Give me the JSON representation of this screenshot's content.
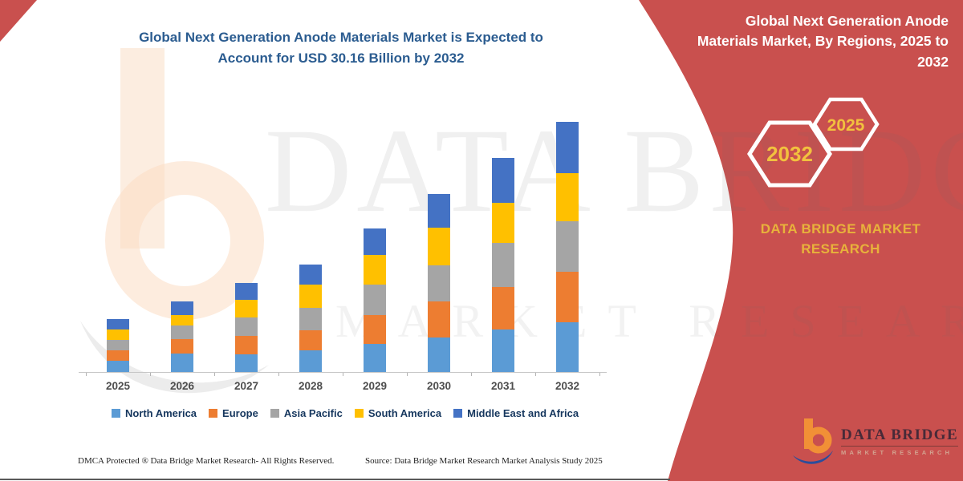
{
  "colors": {
    "banner_red": "#c9504e",
    "title_blue": "#2b5c90",
    "legend_text": "#16375e",
    "hex_yellow": "#f2c13e",
    "brand_yellow": "#e8b23b"
  },
  "chart": {
    "title_line1": "Global Next Generation Anode Materials Market is Expected to",
    "title_line2": "Account for USD 30.16 Billion by 2032"
  },
  "chart_data": {
    "type": "bar",
    "stacked": true,
    "unit": "USD Billion",
    "title": "Global Next Generation Anode Materials Market, By Regions, 2025 to 2032",
    "xlabel": "",
    "ylabel": "",
    "grid": false,
    "y_axis_visible": false,
    "legend_position": "bottom",
    "ylim": [
      0,
      32
    ],
    "categories": [
      "2025",
      "2026",
      "2027",
      "2028",
      "2029",
      "2030",
      "2031",
      "2032"
    ],
    "series": [
      {
        "name": "North America",
        "color": "#5B9BD5",
        "values": [
          1.35,
          2.22,
          2.13,
          2.61,
          3.38,
          4.16,
          5.12,
          5.99
        ]
      },
      {
        "name": "Europe",
        "color": "#ED7D31",
        "values": [
          1.26,
          1.74,
          2.22,
          2.42,
          3.48,
          4.35,
          5.12,
          6.09
        ]
      },
      {
        "name": "Asia Pacific",
        "color": "#A5A5A5",
        "values": [
          1.26,
          1.64,
          2.22,
          2.71,
          3.67,
          4.35,
          5.32,
          6.09
        ]
      },
      {
        "name": "South America",
        "color": "#FFC000",
        "values": [
          1.26,
          1.26,
          2.13,
          2.8,
          3.58,
          4.54,
          4.83,
          5.8
        ]
      },
      {
        "name": "Middle East and Africa",
        "color": "#4472C4",
        "values": [
          1.26,
          1.64,
          2.03,
          2.42,
          3.19,
          4.06,
          5.41,
          6.19
        ]
      }
    ],
    "totals": [
      6.39,
      8.5,
      10.73,
      12.96,
      17.3,
      21.46,
      25.8,
      30.16
    ]
  },
  "banner": {
    "title_line1": "Global Next Generation Anode",
    "title_line2": "Materials Market, By Regions, 2025 to",
    "title_line3": "2032",
    "hex_back_label": "2032",
    "hex_front_label": "2025",
    "brand_line1": "DATA BRIDGE MARKET",
    "brand_line2": "RESEARCH"
  },
  "watermark": {
    "brand": "DATA BRIDGE",
    "sub": "MARKET RESEARCH"
  },
  "logo": {
    "name": "DATA BRIDGE",
    "tagline": "MARKET RESEARCH"
  },
  "footer": {
    "dmca": "DMCA Protected ® Data Bridge Market Research-  All Rights Reserved.",
    "source": "Source: Data Bridge Market Research  Market Analysis Study 2025"
  }
}
